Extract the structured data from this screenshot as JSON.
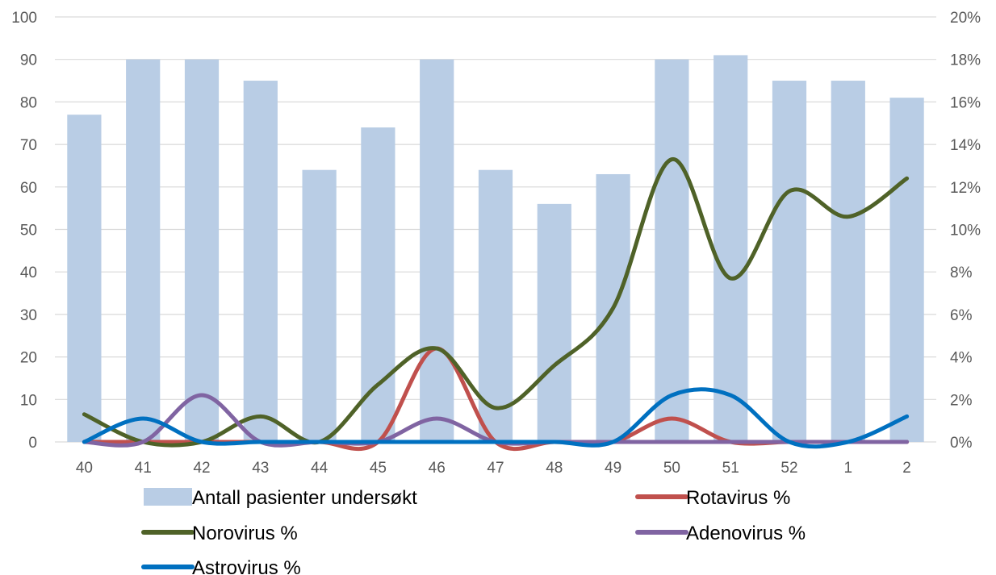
{
  "chart_data": {
    "type": "bar",
    "categories": [
      "40",
      "41",
      "42",
      "43",
      "44",
      "45",
      "46",
      "47",
      "48",
      "49",
      "50",
      "51",
      "52",
      "1",
      "2"
    ],
    "y_left": {
      "ticks": [
        "0",
        "10",
        "20",
        "30",
        "40",
        "50",
        "60",
        "70",
        "80",
        "90",
        "100"
      ],
      "ylim": [
        0,
        100
      ]
    },
    "y_right": {
      "ticks": [
        "0%",
        "2%",
        "4%",
        "6%",
        "8%",
        "10%",
        "12%",
        "14%",
        "16%",
        "18%",
        "20%"
      ],
      "ylim": [
        0,
        20
      ]
    },
    "series": [
      {
        "name": "Antall pasienter undersøkt",
        "kind": "bar",
        "axis": "left",
        "color": "#b9cde5",
        "values": [
          77,
          90,
          90,
          85,
          64,
          74,
          90,
          64,
          56,
          63,
          90,
          91,
          85,
          85,
          81
        ]
      },
      {
        "name": "Rotavirus %",
        "kind": "line",
        "axis": "right",
        "color": "#c0504d",
        "values": [
          0,
          0,
          0,
          0,
          0,
          0,
          4.4,
          0,
          0,
          0,
          1.1,
          0,
          0,
          0,
          0
        ]
      },
      {
        "name": "Norovirus %",
        "kind": "line",
        "axis": "right",
        "color": "#4f6228",
        "values": [
          1.3,
          0,
          0,
          1.2,
          0,
          2.7,
          4.4,
          1.6,
          3.6,
          6.3,
          13.3,
          7.7,
          11.8,
          10.6,
          12.4
        ]
      },
      {
        "name": "Adenovirus %",
        "kind": "line",
        "axis": "right",
        "color": "#8064a2",
        "values": [
          0,
          0,
          2.2,
          0,
          0,
          0,
          1.1,
          0,
          0,
          0,
          0,
          0,
          0,
          0,
          0
        ]
      },
      {
        "name": "Astrovirus %",
        "kind": "line",
        "axis": "right",
        "color": "#0070c0",
        "values": [
          0,
          1.1,
          0,
          0,
          0,
          0,
          0,
          0,
          0,
          0,
          2.2,
          2.2,
          0,
          0,
          1.2
        ]
      }
    ],
    "legend": [
      {
        "label": "Antall pasienter undersøkt",
        "kind": "bar",
        "color": "#b9cde5"
      },
      {
        "label": "Rotavirus %",
        "kind": "line",
        "color": "#c0504d"
      },
      {
        "label": "Norovirus %",
        "kind": "line",
        "color": "#4f6228"
      },
      {
        "label": "Adenovirus %",
        "kind": "line",
        "color": "#8064a2"
      },
      {
        "label": "Astrovirus %",
        "kind": "line",
        "color": "#0070c0"
      }
    ],
    "grid": true,
    "grid_color": "#d9d9d9",
    "legend_position": "bottom"
  }
}
